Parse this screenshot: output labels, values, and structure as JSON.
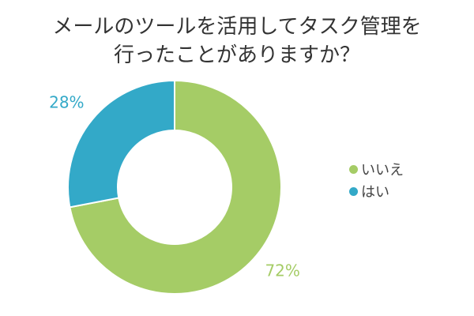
{
  "chart_data": {
    "type": "pie",
    "variant": "donut",
    "title_lines": [
      "メールのツールを活用してタスク管理を",
      "行ったことがありますか？"
    ],
    "slices": [
      {
        "label": "いいえ",
        "value": 72,
        "value_label": "72%",
        "color": "#a5cc66"
      },
      {
        "label": "はい",
        "value": 28,
        "value_label": "28%",
        "color": "#33a9c8"
      }
    ],
    "legend_position": "right",
    "start_angle": "top, clockwise"
  }
}
